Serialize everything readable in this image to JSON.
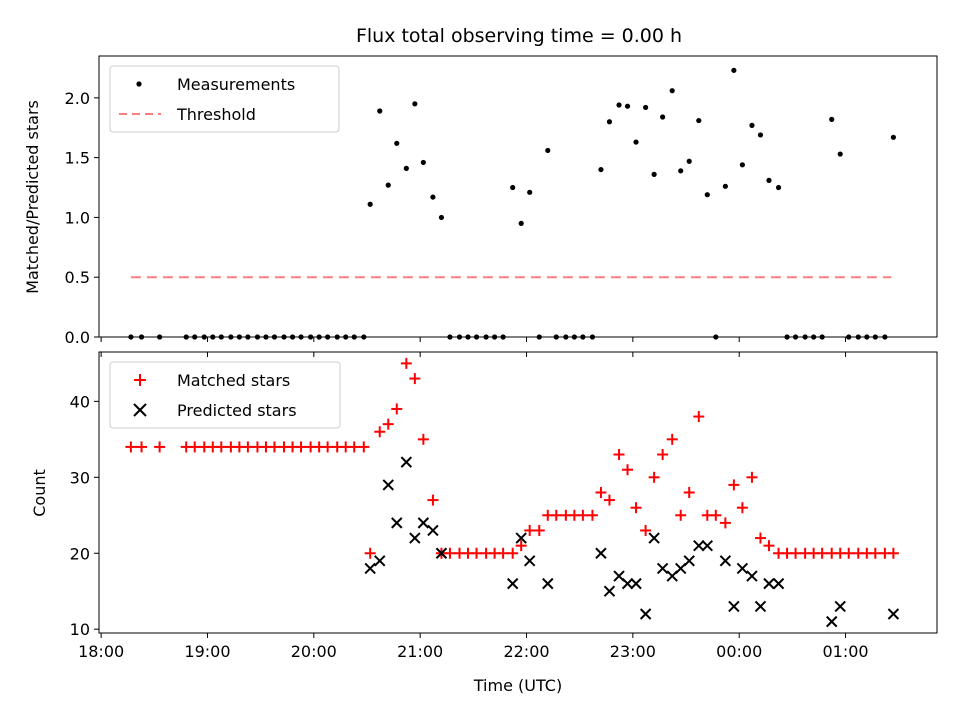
{
  "chart_data": {
    "title": "Flux total observing time = 0.00 h",
    "xlabel": "Time (UTC)",
    "x_tick_labels": [
      "18:00",
      "19:00",
      "20:00",
      "21:00",
      "22:00",
      "23:00",
      "00:00",
      "01:00"
    ],
    "xlim_hours": [
      17.98,
      25.86
    ],
    "panels": [
      {
        "type": "scatter",
        "ylabel": "Matched/Predicted stars",
        "ylim": [
          0,
          2.35
        ],
        "yticks": [
          0.0,
          0.5,
          1.0,
          1.5,
          2.0
        ],
        "ytick_labels": [
          "0.0",
          "0.5",
          "1.0",
          "1.5",
          "2.0"
        ],
        "legend_position": "top-left",
        "legend": [
          {
            "label": "Measurements",
            "marker": "dot",
            "color": "#000000"
          },
          {
            "label": "Threshold",
            "marker": "dashed-line",
            "color": "#ff7f7f"
          }
        ],
        "threshold": {
          "value": 0.5,
          "x_range": [
            18.28,
            25.43
          ]
        },
        "measurements": [
          [
            18.28,
            0
          ],
          [
            18.38,
            0
          ],
          [
            18.55,
            0
          ],
          [
            18.8,
            0
          ],
          [
            18.88,
            0
          ],
          [
            18.97,
            0
          ],
          [
            19.05,
            0
          ],
          [
            19.13,
            0
          ],
          [
            19.22,
            0
          ],
          [
            19.3,
            0
          ],
          [
            19.38,
            0
          ],
          [
            19.47,
            0
          ],
          [
            19.55,
            0
          ],
          [
            19.63,
            0
          ],
          [
            19.72,
            0
          ],
          [
            19.8,
            0
          ],
          [
            19.88,
            0
          ],
          [
            19.97,
            0
          ],
          [
            20.05,
            0
          ],
          [
            20.13,
            0
          ],
          [
            20.22,
            0
          ],
          [
            20.3,
            0
          ],
          [
            20.38,
            0
          ],
          [
            20.47,
            0
          ],
          [
            20.53,
            1.11
          ],
          [
            20.62,
            1.89
          ],
          [
            20.7,
            1.27
          ],
          [
            20.78,
            1.62
          ],
          [
            20.87,
            1.41
          ],
          [
            20.95,
            1.95
          ],
          [
            21.03,
            1.46
          ],
          [
            21.12,
            1.17
          ],
          [
            21.2,
            1.0
          ],
          [
            21.28,
            0
          ],
          [
            21.37,
            0
          ],
          [
            21.45,
            0
          ],
          [
            21.53,
            0
          ],
          [
            21.62,
            0
          ],
          [
            21.7,
            0
          ],
          [
            21.78,
            0
          ],
          [
            21.87,
            1.25
          ],
          [
            21.95,
            0.95
          ],
          [
            22.03,
            1.21
          ],
          [
            22.12,
            0
          ],
          [
            22.2,
            1.56
          ],
          [
            22.28,
            0
          ],
          [
            22.37,
            0
          ],
          [
            22.45,
            0
          ],
          [
            22.53,
            0
          ],
          [
            22.62,
            0
          ],
          [
            22.7,
            1.4
          ],
          [
            22.78,
            1.8
          ],
          [
            22.87,
            1.94
          ],
          [
            22.95,
            1.93
          ],
          [
            23.03,
            1.63
          ],
          [
            23.12,
            1.92
          ],
          [
            23.2,
            1.36
          ],
          [
            23.28,
            1.84
          ],
          [
            23.37,
            2.06
          ],
          [
            23.45,
            1.39
          ],
          [
            23.53,
            1.47
          ],
          [
            23.62,
            1.81
          ],
          [
            23.7,
            1.19
          ],
          [
            23.78,
            0
          ],
          [
            23.87,
            1.26
          ],
          [
            23.95,
            2.23
          ],
          [
            24.03,
            1.44
          ],
          [
            24.12,
            1.77
          ],
          [
            24.2,
            1.69
          ],
          [
            24.28,
            1.31
          ],
          [
            24.37,
            1.25
          ],
          [
            24.45,
            0
          ],
          [
            24.53,
            0
          ],
          [
            24.62,
            0
          ],
          [
            24.7,
            0
          ],
          [
            24.78,
            0
          ],
          [
            24.87,
            1.82
          ],
          [
            24.95,
            1.53
          ],
          [
            25.03,
            0
          ],
          [
            25.12,
            0
          ],
          [
            25.2,
            0
          ],
          [
            25.28,
            0
          ],
          [
            25.37,
            0
          ],
          [
            25.45,
            1.67
          ]
        ]
      },
      {
        "type": "scatter",
        "ylabel": "Count",
        "ylim": [
          9.5,
          46.5
        ],
        "yticks": [
          10,
          20,
          30,
          40
        ],
        "ytick_labels": [
          "10",
          "20",
          "30",
          "40"
        ],
        "legend_position": "top-left",
        "legend": [
          {
            "label": "Matched stars",
            "marker": "plus",
            "color": "#ff0000"
          },
          {
            "label": "Predicted stars",
            "marker": "x",
            "color": "#000000"
          }
        ],
        "matched": [
          [
            18.28,
            34
          ],
          [
            18.38,
            34
          ],
          [
            18.55,
            34
          ],
          [
            18.8,
            34
          ],
          [
            18.88,
            34
          ],
          [
            18.97,
            34
          ],
          [
            19.05,
            34
          ],
          [
            19.13,
            34
          ],
          [
            19.22,
            34
          ],
          [
            19.3,
            34
          ],
          [
            19.38,
            34
          ],
          [
            19.47,
            34
          ],
          [
            19.55,
            34
          ],
          [
            19.63,
            34
          ],
          [
            19.72,
            34
          ],
          [
            19.8,
            34
          ],
          [
            19.88,
            34
          ],
          [
            19.97,
            34
          ],
          [
            20.05,
            34
          ],
          [
            20.13,
            34
          ],
          [
            20.22,
            34
          ],
          [
            20.3,
            34
          ],
          [
            20.38,
            34
          ],
          [
            20.47,
            34
          ],
          [
            20.53,
            20
          ],
          [
            20.62,
            36
          ],
          [
            20.7,
            37
          ],
          [
            20.78,
            39
          ],
          [
            20.87,
            45
          ],
          [
            20.95,
            43
          ],
          [
            21.03,
            35
          ],
          [
            21.12,
            27
          ],
          [
            21.2,
            20
          ],
          [
            21.28,
            20
          ],
          [
            21.37,
            20
          ],
          [
            21.45,
            20
          ],
          [
            21.53,
            20
          ],
          [
            21.62,
            20
          ],
          [
            21.7,
            20
          ],
          [
            21.78,
            20
          ],
          [
            21.87,
            20
          ],
          [
            21.95,
            21
          ],
          [
            22.03,
            23
          ],
          [
            22.12,
            23
          ],
          [
            22.2,
            25
          ],
          [
            22.28,
            25
          ],
          [
            22.37,
            25
          ],
          [
            22.45,
            25
          ],
          [
            22.53,
            25
          ],
          [
            22.62,
            25
          ],
          [
            22.7,
            28
          ],
          [
            22.78,
            27
          ],
          [
            22.87,
            33
          ],
          [
            22.95,
            31
          ],
          [
            23.03,
            26
          ],
          [
            23.12,
            23
          ],
          [
            23.2,
            30
          ],
          [
            23.28,
            33
          ],
          [
            23.37,
            35
          ],
          [
            23.45,
            25
          ],
          [
            23.53,
            28
          ],
          [
            23.62,
            38
          ],
          [
            23.7,
            25
          ],
          [
            23.78,
            25
          ],
          [
            23.87,
            24
          ],
          [
            23.95,
            29
          ],
          [
            24.03,
            26
          ],
          [
            24.12,
            30
          ],
          [
            24.2,
            22
          ],
          [
            24.28,
            21
          ],
          [
            24.37,
            20
          ],
          [
            24.45,
            20
          ],
          [
            24.53,
            20
          ],
          [
            24.62,
            20
          ],
          [
            24.7,
            20
          ],
          [
            24.78,
            20
          ],
          [
            24.87,
            20
          ],
          [
            24.95,
            20
          ],
          [
            25.03,
            20
          ],
          [
            25.12,
            20
          ],
          [
            25.2,
            20
          ],
          [
            25.28,
            20
          ],
          [
            25.37,
            20
          ],
          [
            25.45,
            20
          ]
        ],
        "predicted": [
          [
            20.53,
            18
          ],
          [
            20.62,
            19
          ],
          [
            20.7,
            29
          ],
          [
            20.78,
            24
          ],
          [
            20.87,
            32
          ],
          [
            20.95,
            22
          ],
          [
            21.03,
            24
          ],
          [
            21.12,
            23
          ],
          [
            21.2,
            20
          ],
          [
            21.87,
            16
          ],
          [
            21.95,
            22
          ],
          [
            22.03,
            19
          ],
          [
            22.2,
            16
          ],
          [
            22.7,
            20
          ],
          [
            22.78,
            15
          ],
          [
            22.87,
            17
          ],
          [
            22.95,
            16
          ],
          [
            23.03,
            16
          ],
          [
            23.12,
            12
          ],
          [
            23.2,
            22
          ],
          [
            23.28,
            18
          ],
          [
            23.37,
            17
          ],
          [
            23.45,
            18
          ],
          [
            23.53,
            19
          ],
          [
            23.62,
            21
          ],
          [
            23.7,
            21
          ],
          [
            23.87,
            19
          ],
          [
            23.95,
            13
          ],
          [
            24.03,
            18
          ],
          [
            24.12,
            17
          ],
          [
            24.2,
            13
          ],
          [
            24.28,
            16
          ],
          [
            24.37,
            16
          ],
          [
            24.87,
            11
          ],
          [
            24.95,
            13
          ],
          [
            25.45,
            12
          ]
        ]
      }
    ]
  }
}
